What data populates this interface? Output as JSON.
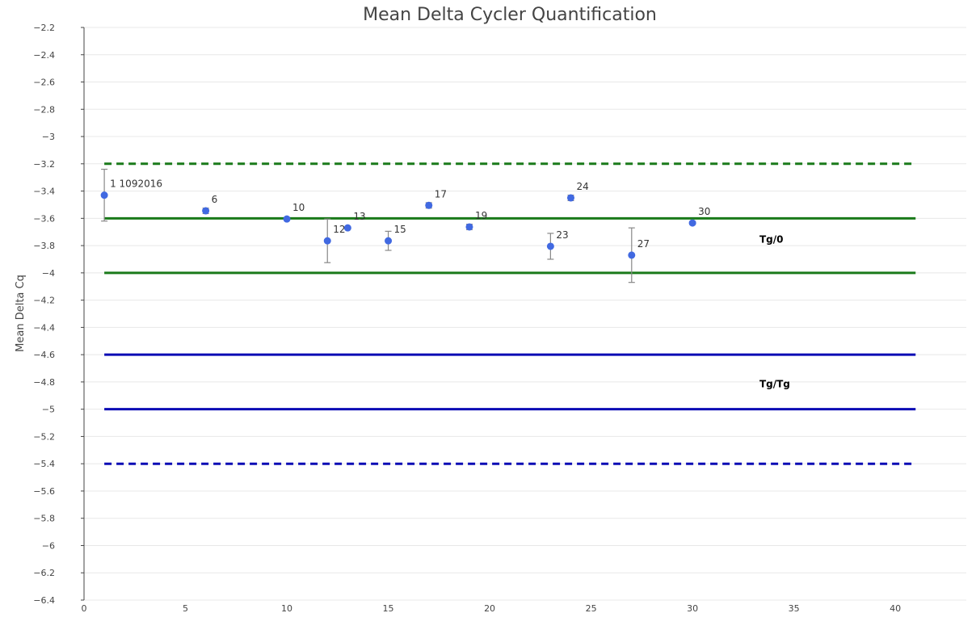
{
  "chart_data": {
    "type": "scatter",
    "title": "Mean Delta Cycler Quantification",
    "xlabel": "",
    "ylabel": "Mean Delta Cq",
    "xlim": [
      0,
      43.5
    ],
    "ylim": [
      -6.4,
      -2.2
    ],
    "xticks": [
      0,
      5,
      10,
      15,
      20,
      25,
      30,
      35,
      40
    ],
    "yticks": [
      -2.2,
      -2.4,
      -2.6,
      -2.8,
      -3,
      -3.2,
      -3.4,
      -3.6,
      -3.8,
      -4,
      -4.2,
      -4.4,
      -4.6,
      -4.8,
      -5,
      -5.2,
      -5.4,
      -5.6,
      -5.8,
      -6,
      -6.2,
      -6.4
    ],
    "grid": true,
    "points": [
      {
        "x": 1,
        "y": -3.43,
        "err_plus": 0.19,
        "err_minus": 0.19,
        "label": "1 1092016"
      },
      {
        "x": 6,
        "y": -3.545,
        "err_plus": 0.02,
        "err_minus": 0.02,
        "label": "6"
      },
      {
        "x": 10,
        "y": -3.605,
        "err_plus": 0.0,
        "err_minus": 0.0,
        "label": "10"
      },
      {
        "x": 12,
        "y": -3.765,
        "err_plus": 0.16,
        "err_minus": 0.16,
        "label": "12"
      },
      {
        "x": 13,
        "y": -3.67,
        "err_plus": 0.0,
        "err_minus": 0.0,
        "label": "13"
      },
      {
        "x": 15,
        "y": -3.765,
        "err_plus": 0.07,
        "err_minus": 0.07,
        "label": "15"
      },
      {
        "x": 17,
        "y": -3.505,
        "err_plus": 0.02,
        "err_minus": 0.02,
        "label": "17"
      },
      {
        "x": 19,
        "y": -3.663,
        "err_plus": 0.02,
        "err_minus": 0.02,
        "label": "19"
      },
      {
        "x": 23,
        "y": -3.805,
        "err_plus": 0.095,
        "err_minus": 0.095,
        "label": "23"
      },
      {
        "x": 24,
        "y": -3.45,
        "err_plus": 0.02,
        "err_minus": 0.02,
        "label": "24"
      },
      {
        "x": 27,
        "y": -3.87,
        "err_plus": 0.2,
        "err_minus": 0.2,
        "label": "27"
      },
      {
        "x": 30,
        "y": -3.634,
        "err_plus": 0.01,
        "err_minus": 0.01,
        "label": "30"
      }
    ],
    "reference_lines": [
      {
        "y": -3.2,
        "x": [
          1,
          41
        ],
        "color": "#1a7a1a",
        "style": "dashed"
      },
      {
        "y": -3.6,
        "x": [
          1,
          41
        ],
        "color": "#1a7a1a",
        "style": "solid"
      },
      {
        "y": -4.0,
        "x": [
          1,
          41
        ],
        "color": "#1a7a1a",
        "style": "solid"
      },
      {
        "y": -4.6,
        "x": [
          1,
          41
        ],
        "color": "#0a0ab4",
        "style": "solid"
      },
      {
        "y": -5.0,
        "x": [
          1,
          41
        ],
        "color": "#0a0ab4",
        "style": "solid"
      },
      {
        "y": -5.4,
        "x": [
          1,
          41
        ],
        "color": "#0a0ab4",
        "style": "dashed"
      }
    ],
    "annotations": [
      {
        "text": "Tg/0",
        "x": 33.3,
        "y": -3.78
      },
      {
        "text": "Tg/Tg",
        "x": 33.3,
        "y": -4.84
      }
    ],
    "marker_color": "#4169e1",
    "error_color": "#888888"
  }
}
